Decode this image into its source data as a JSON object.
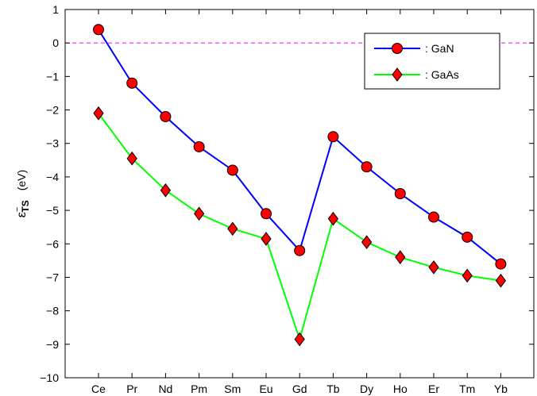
{
  "chart_data": {
    "type": "line",
    "categories": [
      "Ce",
      "Pr",
      "Nd",
      "Pm",
      "Sm",
      "Eu",
      "Gd",
      "Tb",
      "Dy",
      "Ho",
      "Er",
      "Tm",
      "Yb"
    ],
    "series": [
      {
        "name": ": GaN",
        "values": [
          0.4,
          -1.2,
          -2.2,
          -3.1,
          -3.8,
          -5.1,
          -6.2,
          -2.8,
          -3.7,
          -4.5,
          -5.2,
          -5.8,
          -6.6
        ],
        "color": "#0000ff",
        "marker": "circle",
        "marker_color": "#ff0000"
      },
      {
        "name": ": GaAs",
        "values": [
          -2.1,
          -3.45,
          -4.4,
          -5.1,
          -5.55,
          -5.85,
          -8.85,
          -5.25,
          -5.95,
          -6.4,
          -6.7,
          -6.95,
          -7.1
        ],
        "color": "#00ff00",
        "marker": "diamond",
        "marker_color": "#ff0000"
      }
    ],
    "ylim": [
      -10,
      1
    ],
    "yticks": [
      1,
      0,
      -1,
      -2,
      -3,
      -4,
      -5,
      -6,
      -7,
      -8,
      -9,
      -10
    ],
    "ylabel_symbol": "ε",
    "ylabel_sub": "TS",
    "ylabel_sup": "−",
    "ylabel_unit": "(eV)",
    "reference_line": {
      "y": 0,
      "color": "#ff00ff",
      "style": "dashed"
    },
    "legend_position": "top-right",
    "grid": false
  }
}
